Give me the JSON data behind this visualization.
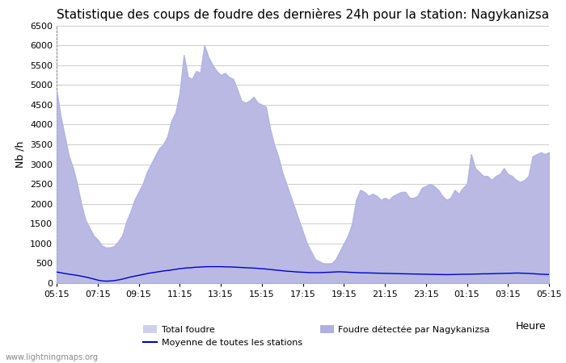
{
  "title": "Statistique des coups de foudre des dernières 24h pour la station: Nagykanizsa",
  "ylabel": "Nb /h",
  "xlabel": "Heure",
  "watermark": "www.lightningmaps.org",
  "ylim": [
    0,
    6500
  ],
  "yticks": [
    0,
    500,
    1000,
    1500,
    2000,
    2500,
    3000,
    3500,
    4000,
    4500,
    5000,
    5500,
    6000,
    6500
  ],
  "xtick_labels": [
    "05:15",
    "07:15",
    "09:15",
    "11:15",
    "13:15",
    "15:15",
    "17:15",
    "19:15",
    "21:15",
    "23:15",
    "01:15",
    "03:15",
    "05:15"
  ],
  "bg_color": "#ffffff",
  "grid_color": "#cccccc",
  "area_color_total": "#d0d0ee",
  "area_color_detected": "#b0b0e0",
  "line_color": "#0000cc",
  "title_fontsize": 11,
  "total_foudre": [
    4850,
    4200,
    3700,
    3200,
    2900,
    2500,
    2000,
    1600,
    1400,
    1200,
    1100,
    950,
    900,
    900,
    930,
    1050,
    1200,
    1550,
    1800,
    2100,
    2300,
    2500,
    2800,
    3000,
    3200,
    3400,
    3500,
    3700,
    4100,
    4300,
    4800,
    5750,
    5200,
    5150,
    5350,
    5300,
    6000,
    5700,
    5500,
    5350,
    5250,
    5300,
    5200,
    5150,
    4900,
    4600,
    4550,
    4600,
    4700,
    4550,
    4500,
    4450,
    3900,
    3500,
    3200,
    2800,
    2500,
    2200,
    1900,
    1600,
    1300,
    1000,
    800,
    600,
    550,
    500,
    480,
    500,
    600,
    800,
    1000,
    1200,
    1500,
    2100,
    2350,
    2300,
    2200,
    2250,
    2200,
    2100,
    2150,
    2100,
    2200,
    2250,
    2300,
    2300,
    2150,
    2150,
    2200,
    2400,
    2450,
    2500,
    2450,
    2350,
    2200,
    2100,
    2150,
    2350,
    2250,
    2400,
    2500,
    3250,
    2900,
    2800,
    2700,
    2700,
    2600,
    2700,
    2750,
    2900,
    2750,
    2700,
    2600,
    2550,
    2600,
    2700,
    3200,
    3250,
    3300,
    3250,
    3300
  ],
  "detected_foudre": [
    4850,
    4200,
    3700,
    3200,
    2900,
    2500,
    2000,
    1600,
    1400,
    1200,
    1100,
    950,
    900,
    900,
    930,
    1050,
    1200,
    1550,
    1800,
    2100,
    2300,
    2500,
    2800,
    3000,
    3200,
    3400,
    3500,
    3700,
    4100,
    4300,
    4800,
    5750,
    5200,
    5150,
    5350,
    5300,
    6000,
    5700,
    5500,
    5350,
    5250,
    5300,
    5200,
    5150,
    4900,
    4600,
    4550,
    4600,
    4700,
    4550,
    4500,
    4450,
    3900,
    3500,
    3200,
    2800,
    2500,
    2200,
    1900,
    1600,
    1300,
    1000,
    800,
    600,
    550,
    500,
    480,
    500,
    600,
    800,
    1000,
    1200,
    1500,
    2100,
    2350,
    2300,
    2200,
    2250,
    2200,
    2100,
    2150,
    2100,
    2200,
    2250,
    2300,
    2300,
    2150,
    2150,
    2200,
    2400,
    2450,
    2500,
    2450,
    2350,
    2200,
    2100,
    2150,
    2350,
    2250,
    2400,
    2500,
    3250,
    2900,
    2800,
    2700,
    2700,
    2600,
    2700,
    2750,
    2900,
    2750,
    2700,
    2600,
    2550,
    2600,
    2700,
    3200,
    3250,
    3300,
    3250,
    3300
  ],
  "moyenne": [
    280,
    265,
    245,
    230,
    215,
    200,
    185,
    165,
    145,
    120,
    95,
    70,
    55,
    50,
    55,
    65,
    80,
    100,
    125,
    150,
    170,
    190,
    210,
    230,
    250,
    265,
    280,
    295,
    310,
    320,
    335,
    350,
    365,
    375,
    385,
    390,
    400,
    405,
    410,
    415,
    415,
    415,
    415,
    415,
    410,
    410,
    405,
    400,
    395,
    390,
    385,
    380,
    375,
    365,
    360,
    350,
    340,
    330,
    320,
    310,
    300,
    295,
    285,
    280,
    275,
    270,
    265,
    265,
    265,
    268,
    270,
    275,
    280,
    285,
    285,
    280,
    275,
    270,
    265,
    260,
    260,
    258,
    255,
    252,
    250,
    248,
    245,
    242,
    240,
    240,
    238,
    235,
    232,
    230,
    230,
    228,
    225,
    222,
    220,
    218,
    215,
    215,
    215,
    218,
    220,
    222,
    225,
    225,
    228,
    230,
    232,
    235,
    235,
    238,
    240,
    242,
    245,
    248,
    250,
    252,
    255,
    250,
    248,
    242,
    238,
    230,
    225,
    220,
    220
  ]
}
